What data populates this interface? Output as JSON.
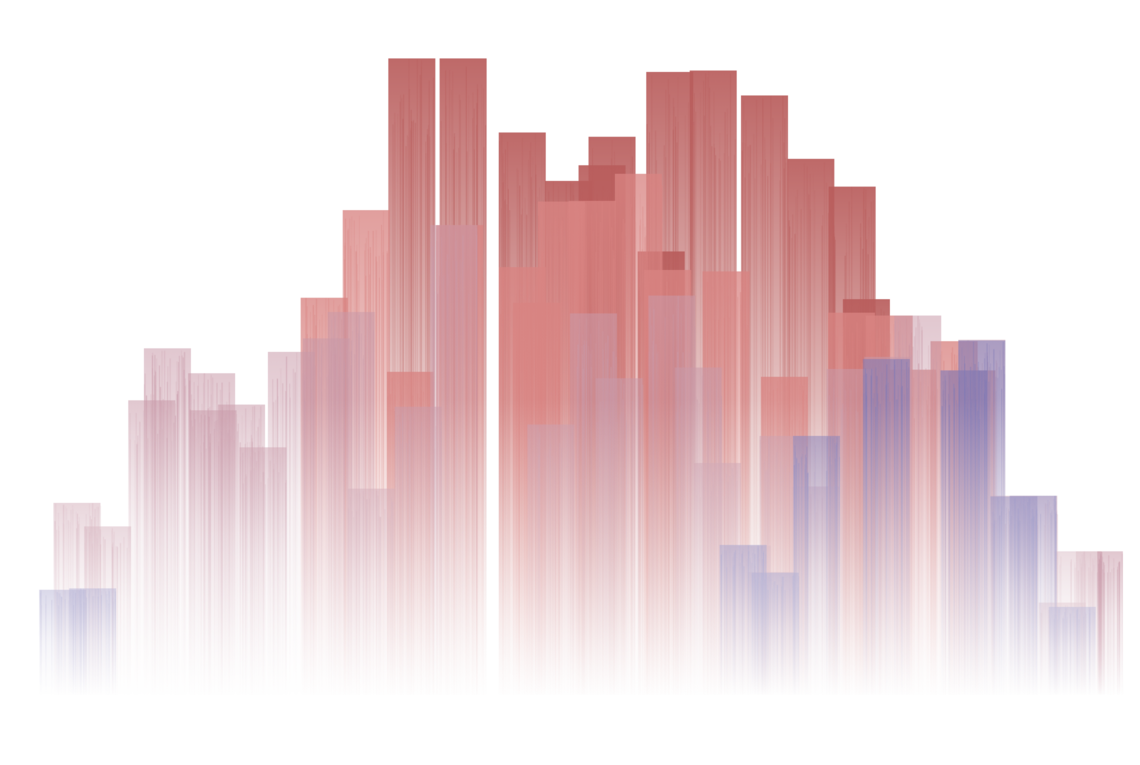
{
  "artwork": {
    "description_shown": "",
    "palette": {
      "background": "#ffffff",
      "warm_dark": "#a84848",
      "warm_mid": "#d97070",
      "warm_light": "#e9aeae",
      "cool_dark": "#5b5290",
      "cool_mid": "#8c86bb",
      "pale": "#f6eef2"
    },
    "style": "vertical-gradient-bar-skyline",
    "layers": [
      {
        "name": "back-warm",
        "color": "#b95d5c",
        "bars": [
          [
            545,
            82
          ],
          [
            617,
            82
          ],
          [
            700,
            186
          ],
          [
            765,
            254
          ],
          [
            812,
            232
          ],
          [
            826,
            192
          ],
          [
            895,
            353
          ],
          [
            907,
            101
          ],
          [
            968,
            99
          ],
          [
            1040,
            134
          ],
          [
            1105,
            223
          ],
          [
            1163,
            262
          ],
          [
            1183,
            420
          ]
        ]
      },
      {
        "name": "mid-warm",
        "color": "#d98482",
        "bars": [
          [
            422,
            418
          ],
          [
            481,
            295
          ],
          [
            543,
            522
          ],
          [
            612,
            316
          ],
          [
            700,
            375
          ],
          [
            720,
            425
          ],
          [
            755,
            283
          ],
          [
            798,
            282
          ],
          [
            863,
            244
          ],
          [
            904,
            379
          ],
          [
            986,
            381
          ],
          [
            1068,
            529
          ],
          [
            1162,
            439
          ],
          [
            1215,
            443
          ],
          [
            1248,
            519
          ],
          [
            1306,
            479
          ],
          [
            1331,
            520
          ]
        ]
      },
      {
        "name": "front-mixed",
        "color": "#c99aa9",
        "bars": [
          [
            75,
            706
          ],
          [
            118,
            739
          ],
          [
            180,
            562
          ],
          [
            202,
            489
          ],
          [
            264,
            524
          ],
          [
            266,
            576
          ],
          [
            306,
            568
          ],
          [
            336,
            628
          ],
          [
            376,
            494
          ],
          [
            425,
            475
          ],
          [
            460,
            438
          ],
          [
            488,
            686
          ],
          [
            554,
            571
          ],
          [
            604,
            316
          ],
          [
            740,
            596
          ],
          [
            800,
            440
          ],
          [
            836,
            531
          ],
          [
            910,
            415
          ],
          [
            947,
            516
          ],
          [
            974,
            650
          ],
          [
            1016,
            766
          ],
          [
            1049,
            803
          ],
          [
            1066,
            612
          ],
          [
            1112,
            683
          ],
          [
            1160,
            518
          ],
          [
            1213,
            501
          ],
          [
            1255,
            443
          ],
          [
            1320,
            520
          ],
          [
            1345,
            477
          ],
          [
            1390,
            696
          ],
          [
            1418,
            696
          ],
          [
            1458,
            846
          ],
          [
            1480,
            774
          ],
          [
            1510,
            774
          ]
        ]
      },
      {
        "name": "cool-accents",
        "color": "#7f79b6",
        "bars": [
          [
            55,
            828
          ],
          [
            97,
            826
          ],
          [
            1010,
            765
          ],
          [
            1055,
            804
          ],
          [
            1113,
            612
          ],
          [
            1211,
            504
          ],
          [
            1320,
            520
          ],
          [
            1345,
            478
          ],
          [
            1390,
            697
          ],
          [
            1417,
            696
          ],
          [
            1472,
            852
          ]
        ]
      }
    ],
    "baseline": 975
  }
}
